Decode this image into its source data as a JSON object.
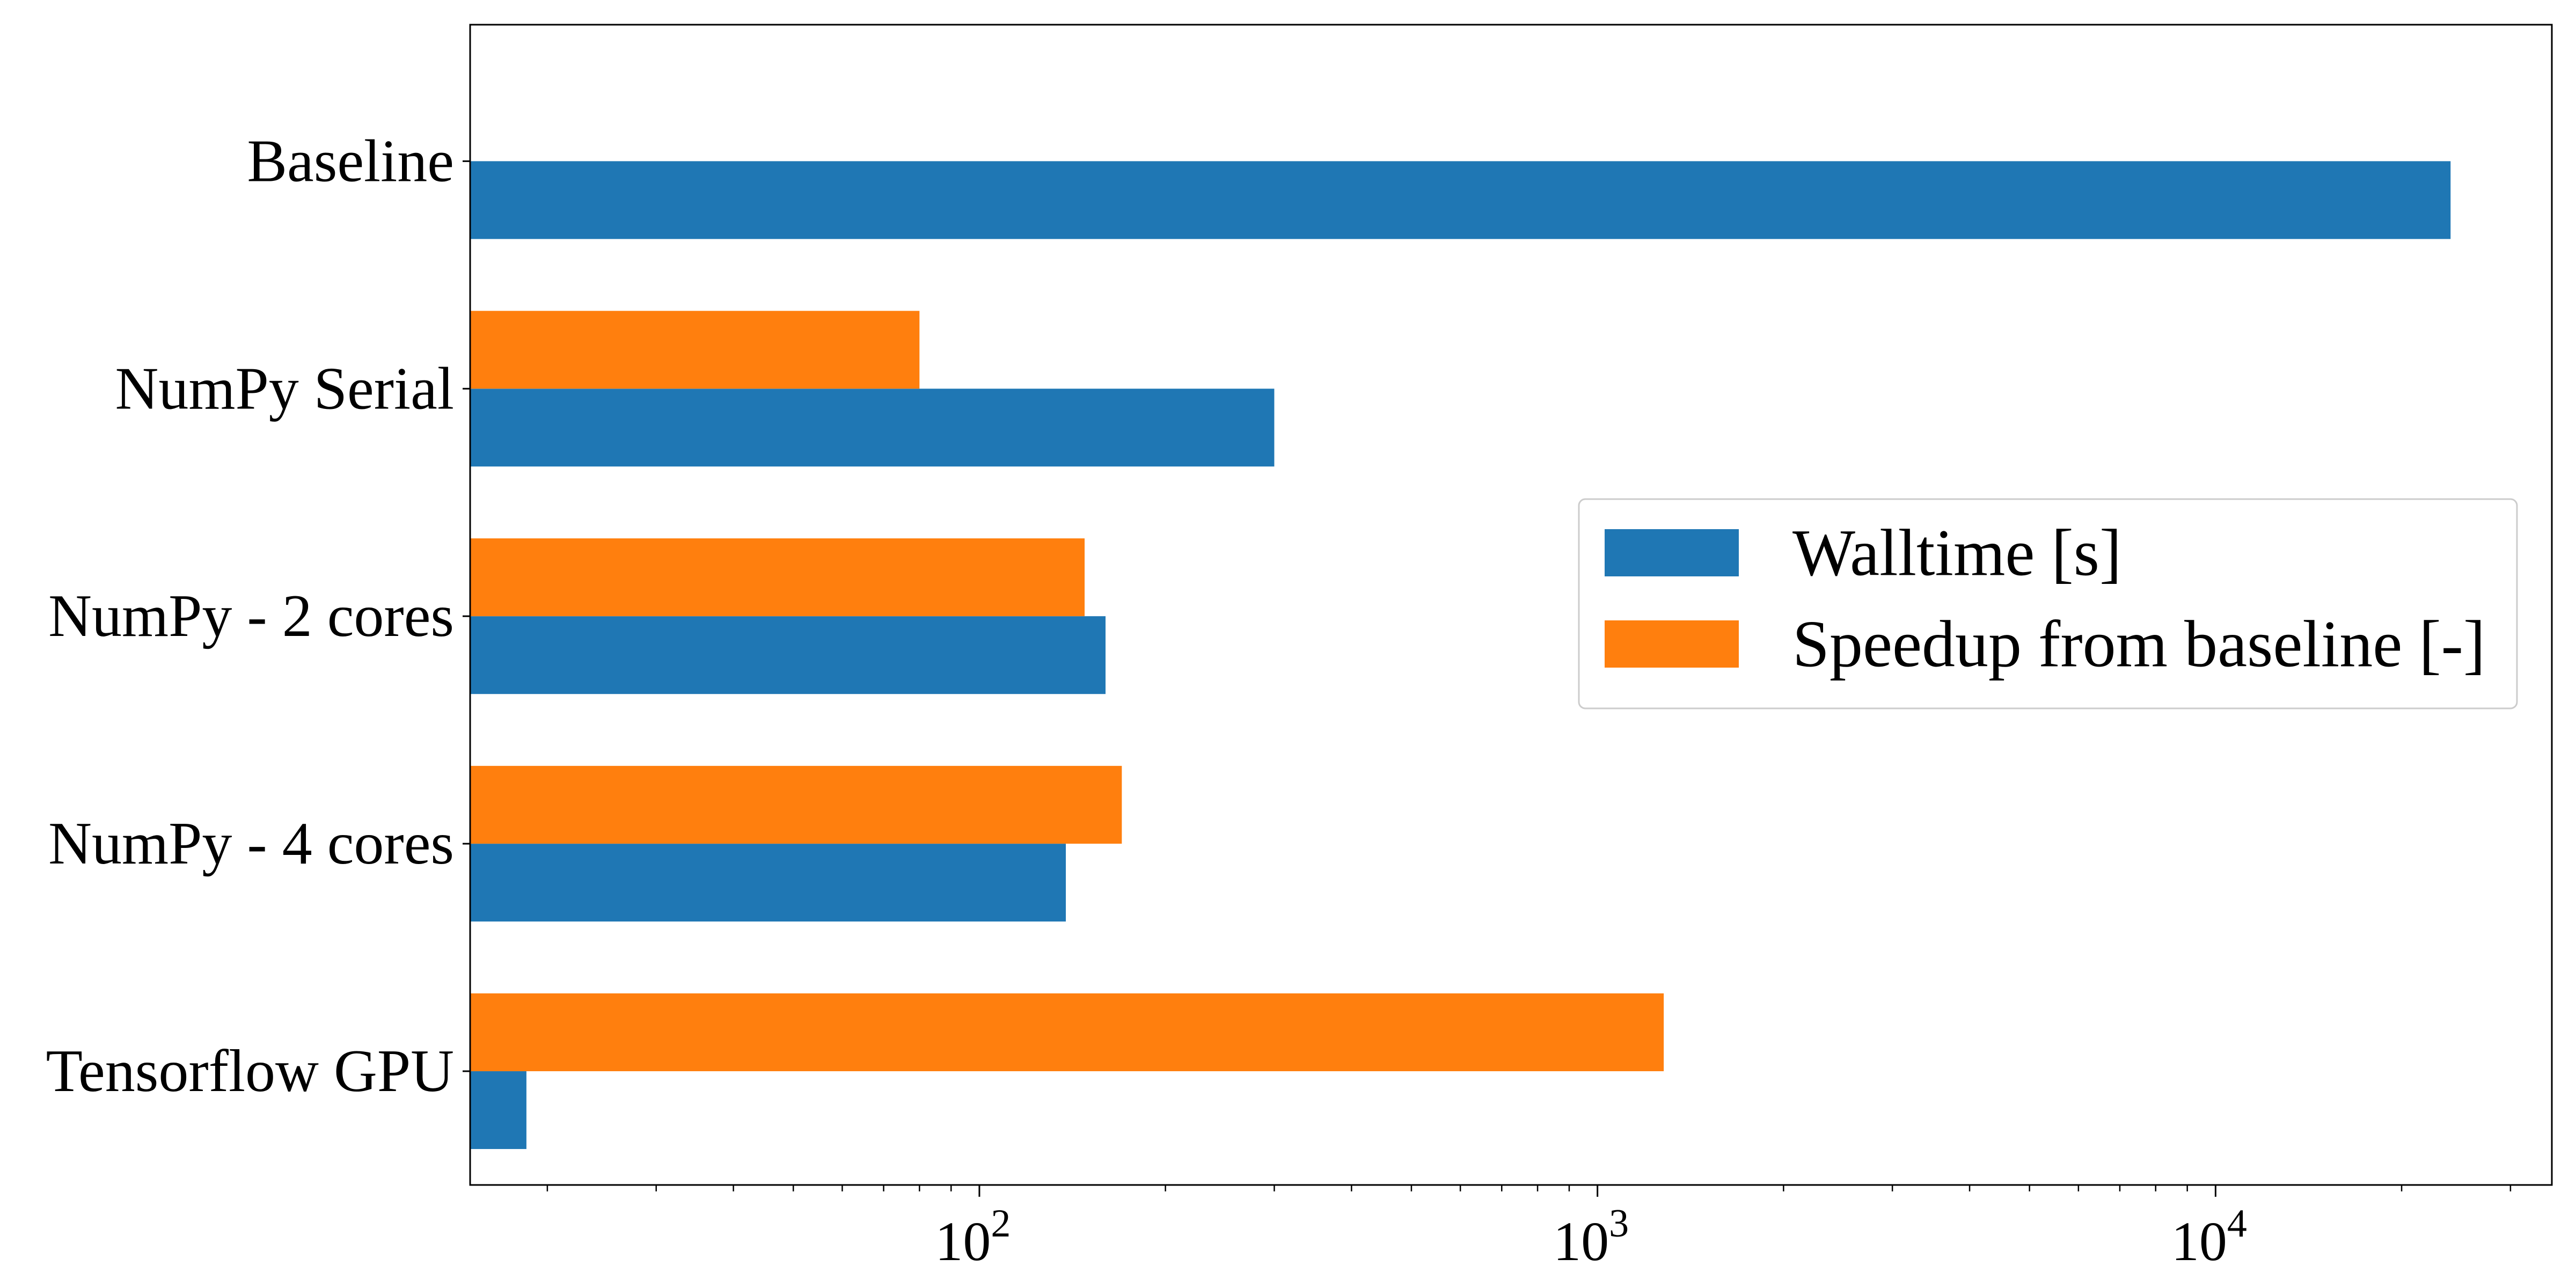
{
  "chart_data": {
    "type": "bar",
    "orientation": "horizontal",
    "xscale": "log",
    "xlim": [
      15,
      35000
    ],
    "categories": [
      "Baseline",
      "NumPy Serial",
      "NumPy - 2 cores",
      "NumPy - 4 cores",
      "Tensorflow GPU"
    ],
    "series": [
      {
        "name": "Walltime [s]",
        "color": "#1f77b4",
        "values": [
          24000,
          300,
          160,
          138,
          18.5
        ]
      },
      {
        "name": "Speedup from baseline [-]",
        "color": "#ff7f0e",
        "values": [
          null,
          80,
          148,
          170,
          1280
        ]
      }
    ],
    "x_ticks": [
      {
        "value": 100,
        "base": "10",
        "exp": "2"
      },
      {
        "value": 1000,
        "base": "10",
        "exp": "3"
      },
      {
        "value": 10000,
        "base": "10",
        "exp": "4"
      }
    ],
    "legend": {
      "position": "center-right"
    },
    "grid": false
  }
}
